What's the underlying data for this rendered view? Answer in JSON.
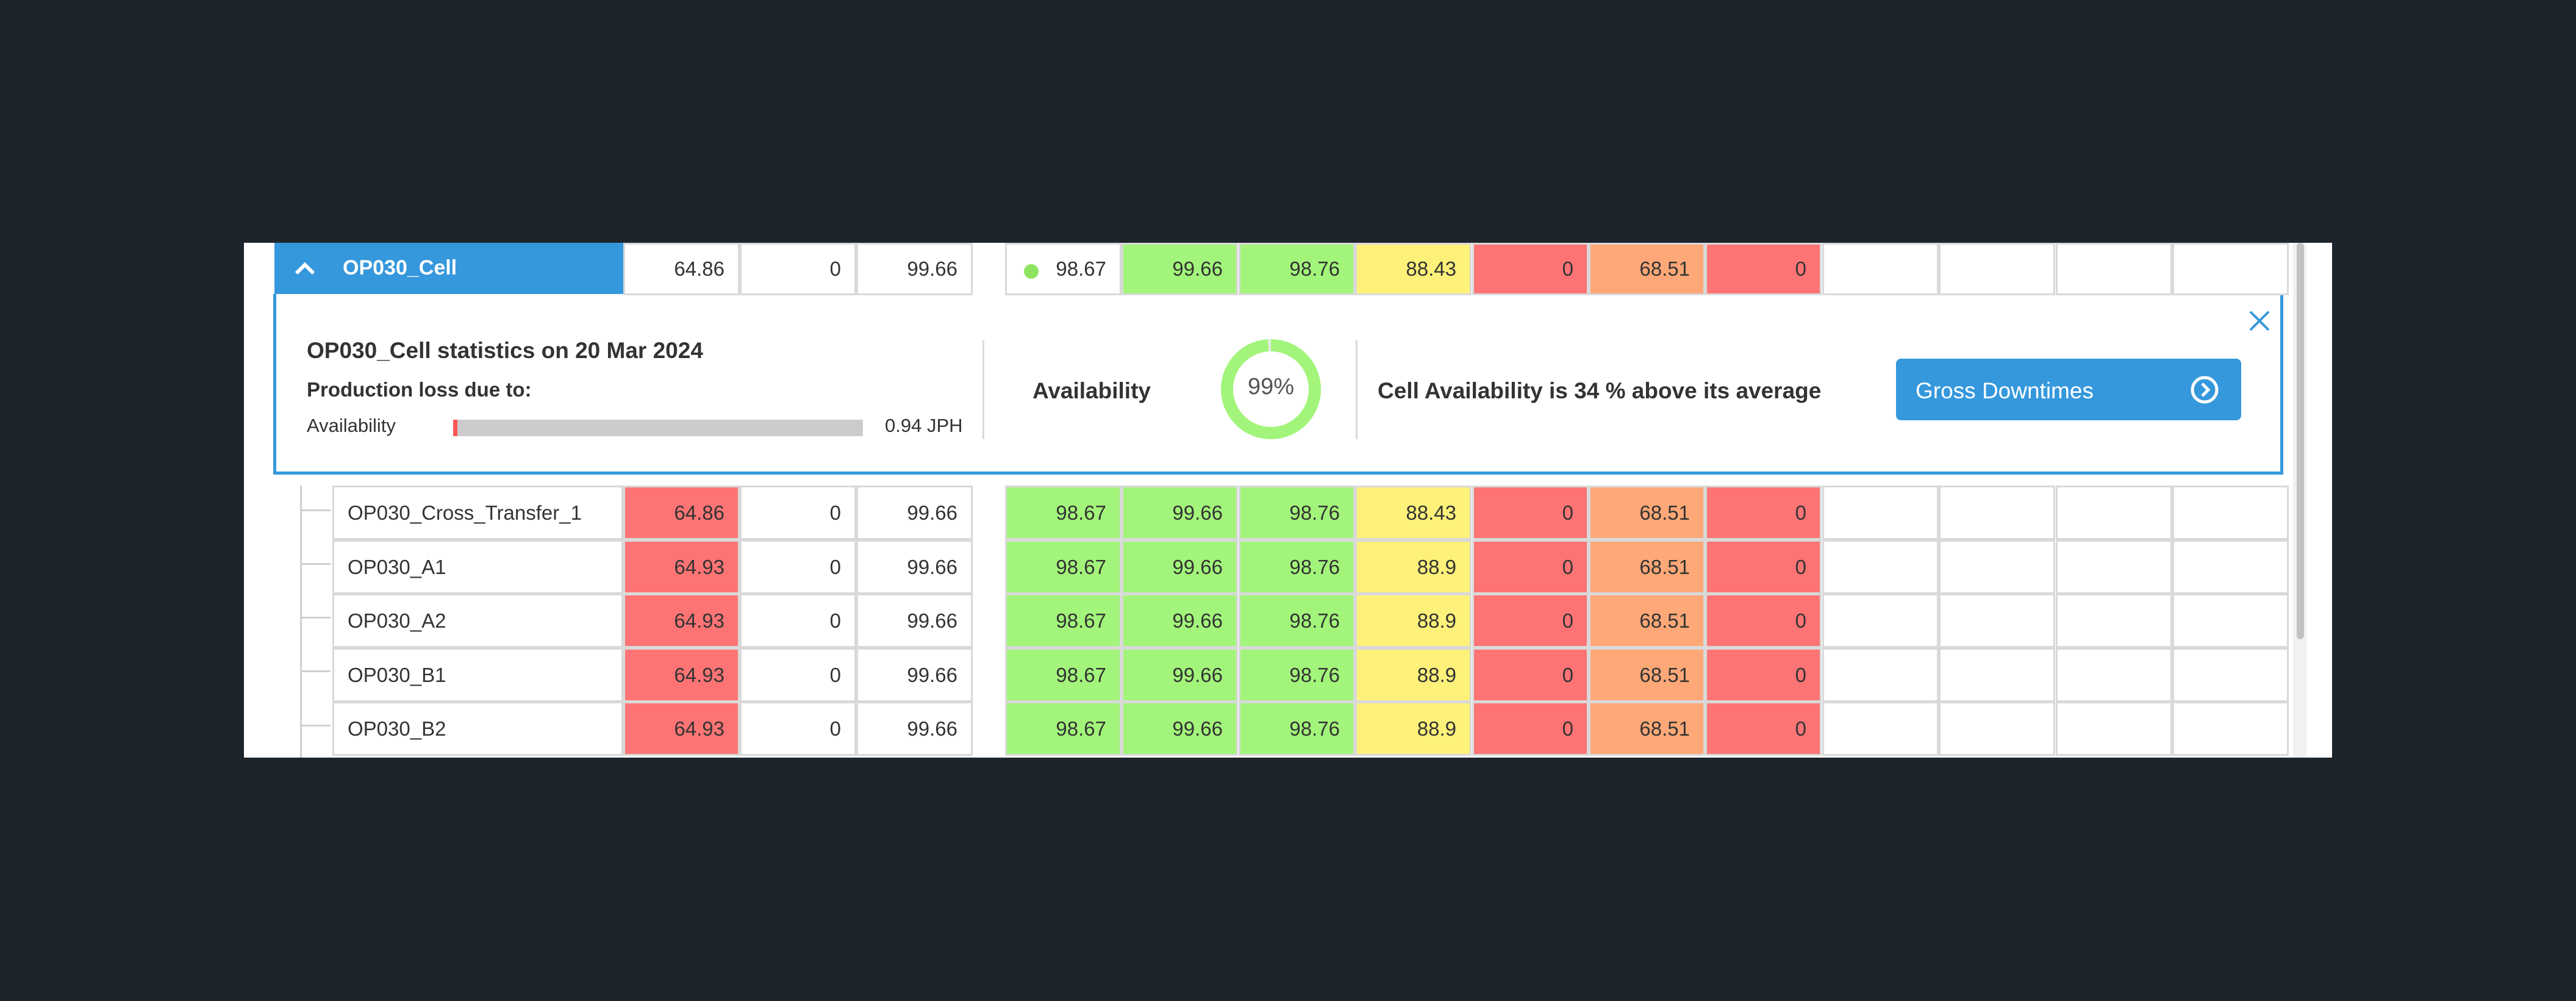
{
  "cell_row": {
    "name": "OP030_Cell",
    "values": [
      "64.86",
      "0",
      "99.66"
    ],
    "metrics": [
      "98.67",
      "99.66",
      "98.76",
      "88.43",
      "0",
      "68.51",
      "0"
    ],
    "metric_colors": [
      "white",
      "green",
      "green",
      "yellow",
      "red",
      "orange",
      "red"
    ],
    "status_dot_color": "#8ee45f"
  },
  "detail": {
    "title": "OP030_Cell statistics on 20 Mar 2024",
    "loss_label": "Production loss due to:",
    "bar_label": "Availability",
    "bar_value": "0.94 JPH",
    "bar_fill_fraction": 0.01,
    "availability_label": "Availability",
    "availability_percent": "99%",
    "availability_fraction": 0.99,
    "message": "Cell Availability is 34 % above its average",
    "button_label": "Gross Downtimes",
    "close_icon": "close-icon",
    "button_icon": "chevron-right-circle-icon"
  },
  "rows": [
    {
      "name": "OP030_Cross_Transfer_1",
      "values": [
        "64.86",
        "0",
        "99.66"
      ],
      "metrics": [
        "98.67",
        "99.66",
        "98.76",
        "88.43",
        "0",
        "68.51",
        "0"
      ]
    },
    {
      "name": "OP030_A1",
      "values": [
        "64.93",
        "0",
        "99.66"
      ],
      "metrics": [
        "98.67",
        "99.66",
        "98.76",
        "88.9",
        "0",
        "68.51",
        "0"
      ]
    },
    {
      "name": "OP030_A2",
      "values": [
        "64.93",
        "0",
        "99.66"
      ],
      "metrics": [
        "98.67",
        "99.66",
        "98.76",
        "88.9",
        "0",
        "68.51",
        "0"
      ]
    },
    {
      "name": "OP030_B1",
      "values": [
        "64.93",
        "0",
        "99.66"
      ],
      "metrics": [
        "98.67",
        "99.66",
        "98.76",
        "88.9",
        "0",
        "68.51",
        "0"
      ]
    },
    {
      "name": "OP030_B2",
      "values": [
        "64.93",
        "0",
        "99.66"
      ],
      "metrics": [
        "98.67",
        "99.66",
        "98.76",
        "88.9",
        "0",
        "68.51",
        "0"
      ]
    }
  ],
  "row_value_colors": [
    "red",
    "white",
    "white"
  ],
  "row_metric_colors": [
    "green",
    "green",
    "green",
    "yellow",
    "red",
    "orange",
    "red"
  ],
  "colors": {
    "accent": "#3598dc",
    "green": "#a2f57a",
    "yellow": "#fdf17a",
    "red": "#fe7474",
    "orange": "#ffa877",
    "background": "#1e242b"
  }
}
